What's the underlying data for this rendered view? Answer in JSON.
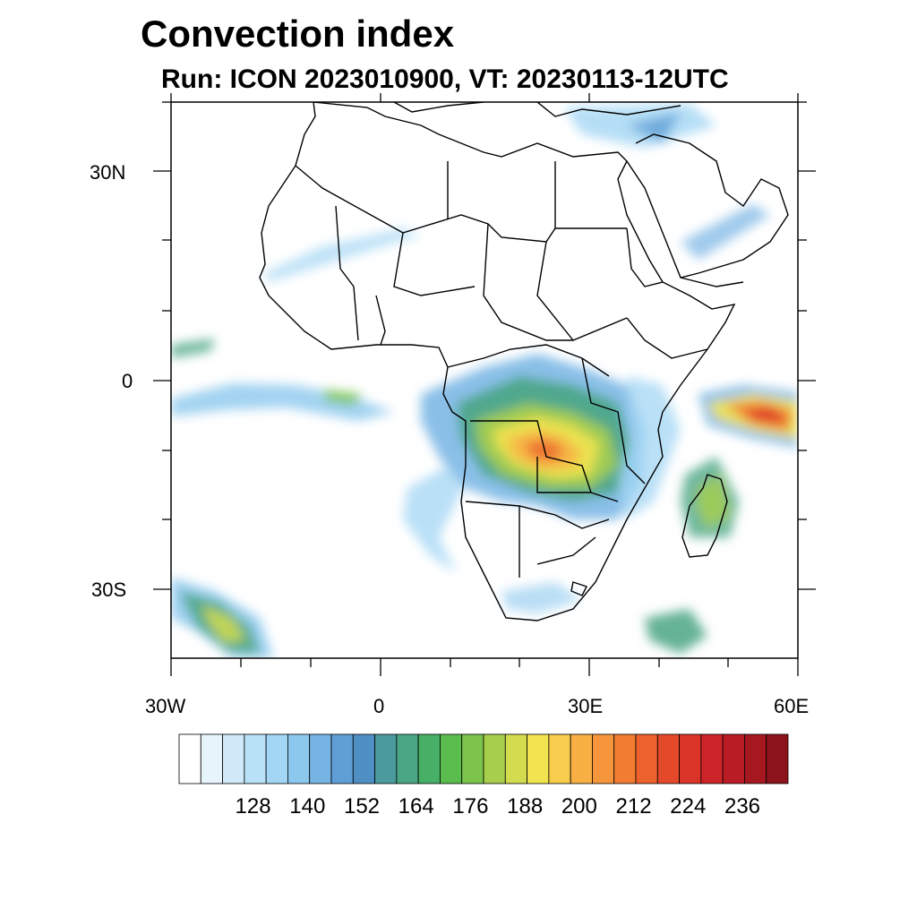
{
  "title": "Convection index",
  "subtitle": "Run: ICON 2023010900,  VT: 20230113-12UTC",
  "axes": {
    "lat_labels": [
      "30N",
      "0",
      "30S"
    ],
    "lon_labels": [
      "30W",
      "0",
      "30E",
      "60E"
    ]
  },
  "colorbar": {
    "tick_labels": [
      "128",
      "140",
      "152",
      "164",
      "176",
      "188",
      "200",
      "212",
      "224",
      "236"
    ],
    "colors": [
      "#ffffff",
      "#e8f4fc",
      "#cfe9f8",
      "#b8e0f6",
      "#a2d6f4",
      "#8cc8ee",
      "#76b4e4",
      "#5f9fd6",
      "#4f8fc4",
      "#4a9a9e",
      "#4aa684",
      "#46b066",
      "#5abd4e",
      "#7cc44c",
      "#a8cf4c",
      "#d2dc4e",
      "#f2e450",
      "#f8cc4c",
      "#f8b044",
      "#f6963c",
      "#f27c32",
      "#ec612c",
      "#e44a2a",
      "#da3428",
      "#cc2428",
      "#ba1c26",
      "#a61820",
      "#8c141a"
    ]
  }
}
